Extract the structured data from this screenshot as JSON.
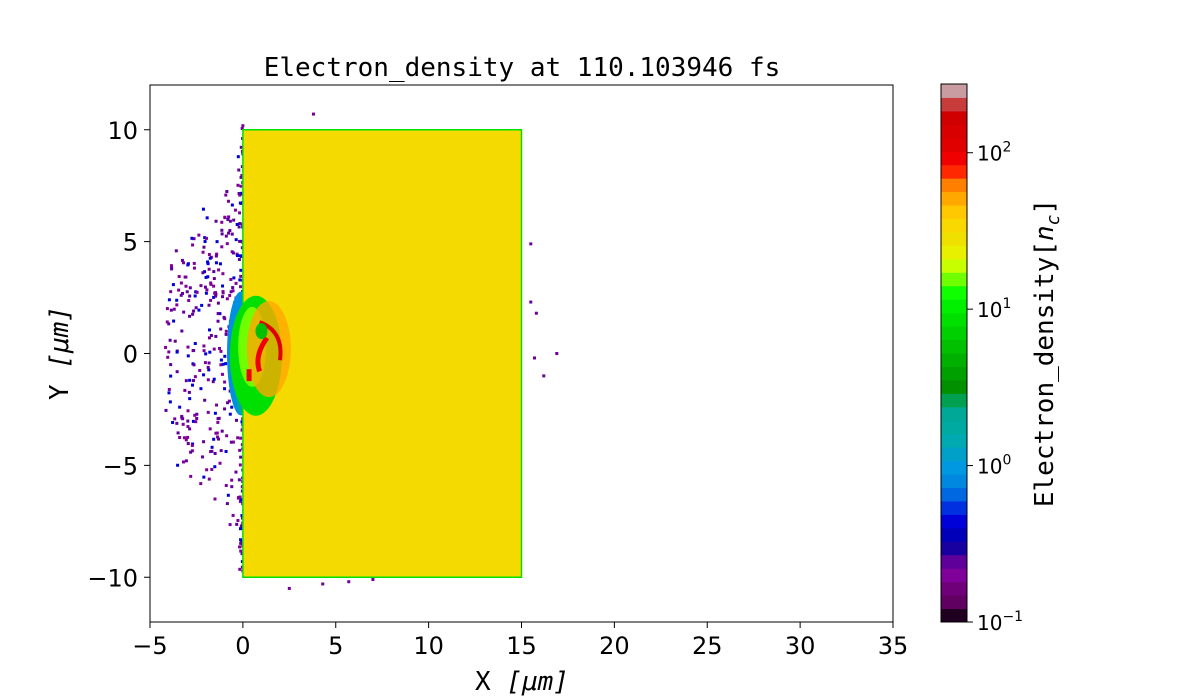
{
  "chart_data": {
    "type": "heatmap",
    "title": "Electron_density at 110.103946 fs",
    "xlabel_prefix": "X ",
    "xlabel_unit": "[μm]",
    "ylabel_prefix": "Y ",
    "ylabel_unit": "[μm]",
    "xlim": [
      -5,
      35
    ],
    "ylim": [
      -12,
      12
    ],
    "xticks": [
      -5,
      0,
      5,
      10,
      15,
      20,
      25,
      30,
      35
    ],
    "xtick_labels": [
      "−5",
      "0",
      "5",
      "10",
      "15",
      "20",
      "25",
      "30",
      "35"
    ],
    "yticks": [
      -10,
      -5,
      0,
      5,
      10
    ],
    "ytick_labels": [
      "−10",
      "−5",
      "0",
      "5",
      "10"
    ],
    "colorbar": {
      "label": "Electron_density[n_c]",
      "label_main": "Electron_density[",
      "label_var": "n",
      "label_sub": "c",
      "label_end": "]",
      "scale": "log",
      "range": [
        0.1,
        275
      ],
      "ticks": [
        0.1,
        1,
        10,
        100
      ],
      "tick_bases": [
        "10",
        "10",
        "10",
        "10"
      ],
      "tick_exponents": [
        "−1",
        "0",
        "1",
        "2"
      ],
      "colors": [
        "#200020",
        "#600060",
        "#70007a",
        "#80009a",
        "#60009a",
        "#1800a0",
        "#0000b8",
        "#0000d8",
        "#0030e0",
        "#0068e0",
        "#0088e0",
        "#0098e0",
        "#00a0c8",
        "#00aab0",
        "#00aaa0",
        "#00a898",
        "#00a050",
        "#009000",
        "#00a000",
        "#00b000",
        "#00c000",
        "#00d000",
        "#00e000",
        "#00f000",
        "#10ff00",
        "#70ff00",
        "#c8ff00",
        "#e8f000",
        "#f0e000",
        "#f8d800",
        "#ffc800",
        "#ffa800",
        "#ff8000",
        "#ff2800",
        "#f00000",
        "#e00000",
        "#d80000",
        "#d00000",
        "#c83c3c",
        "#c89ca0"
      ]
    },
    "regions": [
      {
        "name": "target-slab",
        "x": [
          0,
          15
        ],
        "y": [
          -10,
          10
        ],
        "density_nc": 40,
        "color": "#f5da00"
      },
      {
        "name": "slab-edge",
        "density_nc": 10,
        "color": "#00e000"
      },
      {
        "name": "preplasma-scatter",
        "x": [
          -4,
          0
        ],
        "y": [
          -10.5,
          10.7
        ],
        "density_nc": 0.3,
        "color": "#70009a"
      },
      {
        "name": "underdense-shelf",
        "x": [
          -0.6,
          0
        ],
        "y": [
          -3,
          3
        ],
        "density_nc": 1,
        "color": "#0090e0"
      },
      {
        "name": "laser-interaction-zone",
        "x": [
          0,
          2.5
        ],
        "y": [
          -2.5,
          2
        ],
        "density_nc": 100,
        "color": "#f00000"
      }
    ]
  }
}
